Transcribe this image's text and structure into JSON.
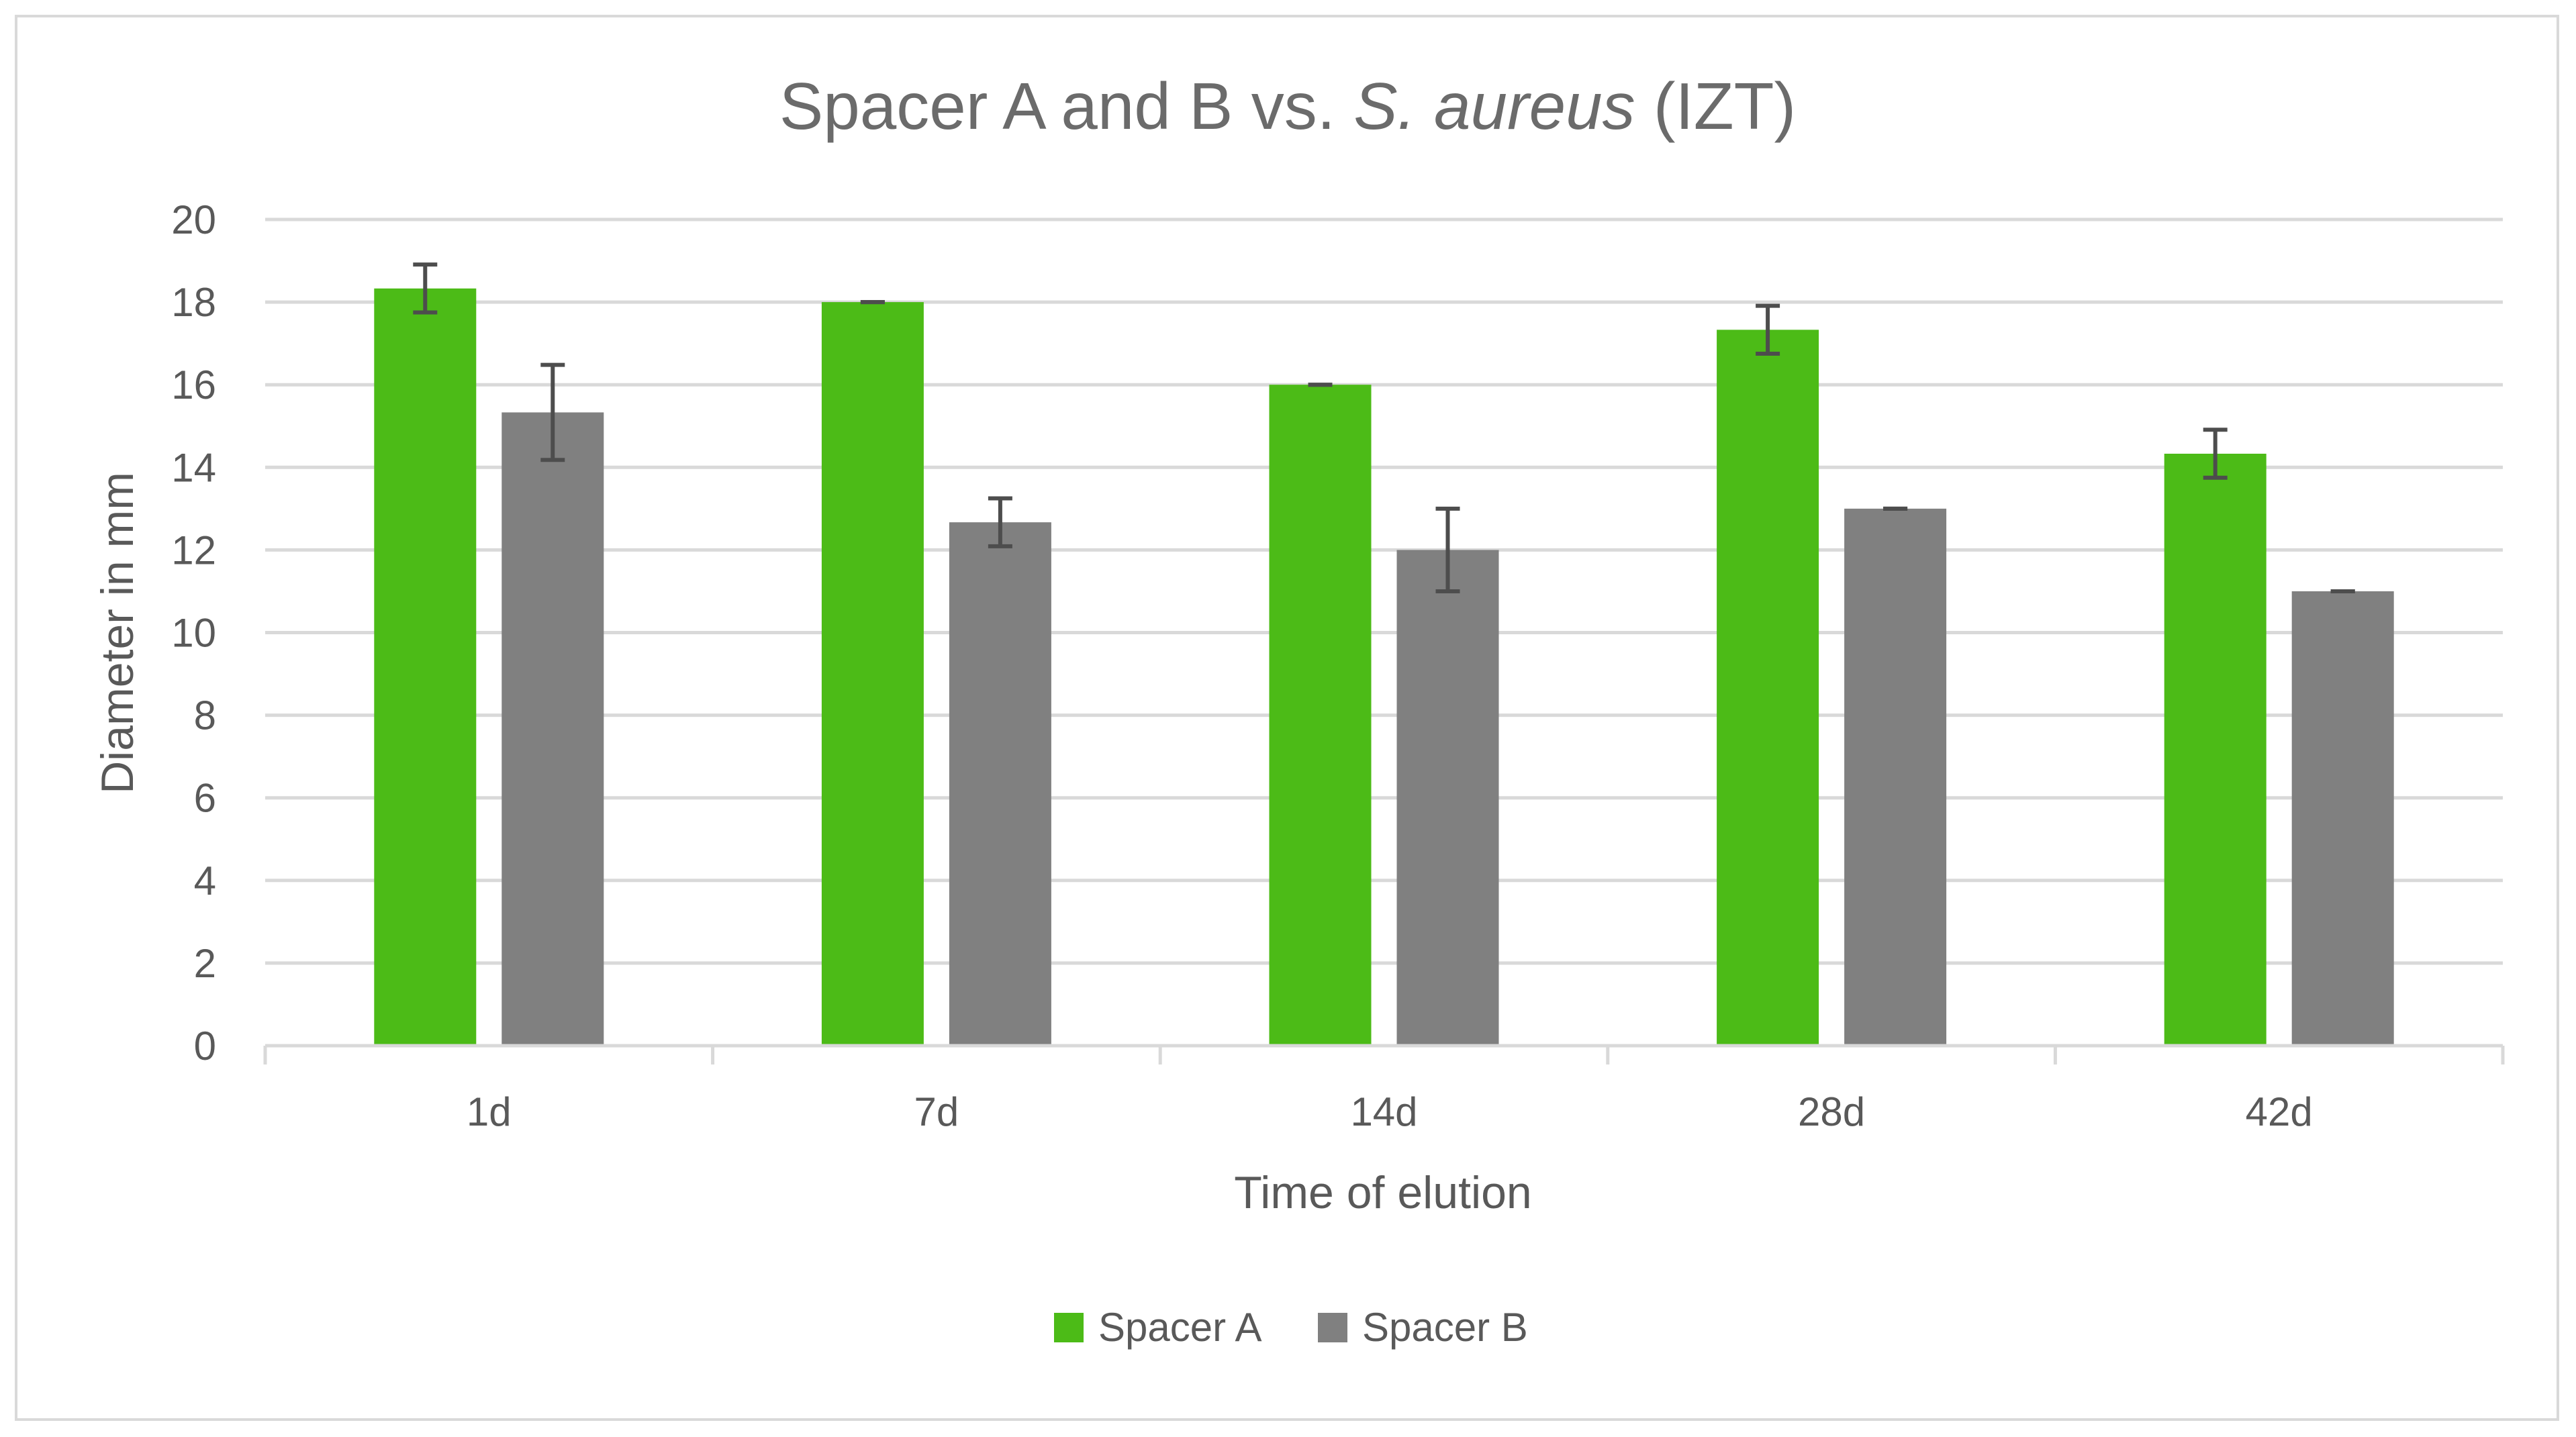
{
  "chart_data": {
    "type": "bar",
    "title": {
      "prefix": "Spacer A and B vs. ",
      "italic": "S. aureus",
      "suffix": " (IZT)"
    },
    "xlabel": "Time of elution",
    "ylabel": "Diameter in mm",
    "categories": [
      "1d",
      "7d",
      "14d",
      "28d",
      "42d"
    ],
    "ylim": [
      0,
      20
    ],
    "yticks": [
      0,
      2,
      4,
      6,
      8,
      10,
      12,
      14,
      16,
      18,
      20
    ],
    "grid": true,
    "legend_position": "bottom",
    "series": [
      {
        "name": "Spacer A",
        "color": "#4cbb17",
        "values": [
          18.33,
          18.0,
          16.0,
          17.33,
          14.33
        ],
        "error": [
          0.58,
          0.0,
          0.0,
          0.58,
          0.58
        ]
      },
      {
        "name": "Spacer B",
        "color": "#808080",
        "values": [
          15.33,
          12.67,
          12.0,
          13.0,
          11.0
        ],
        "error": [
          1.15,
          0.58,
          1.0,
          0.0,
          0.0
        ]
      }
    ]
  }
}
